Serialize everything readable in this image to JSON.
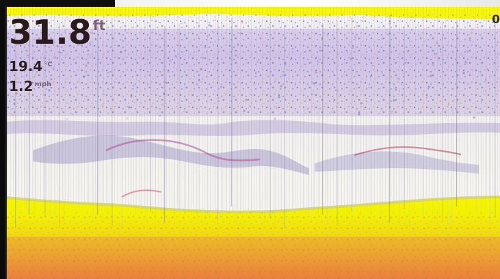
{
  "display": {
    "mode": "sonar-history",
    "colors": {
      "surface_background": "#F1F1EE",
      "bottom_band": "#F4F000",
      "bottom_band_hot": "#FF8A54",
      "target_purple": "#5C2AA8",
      "target_blue": "#2E3BAF",
      "target_red": "#D85D87",
      "bezel": "#111111"
    }
  },
  "readouts": {
    "depth": "31.8",
    "depth_unit": "ft",
    "water_temp": "19.4",
    "water_temp_unit": "°C",
    "speed": "1.2",
    "speed_unit": "mph"
  },
  "right_scale": {
    "top_label": "0"
  }
}
